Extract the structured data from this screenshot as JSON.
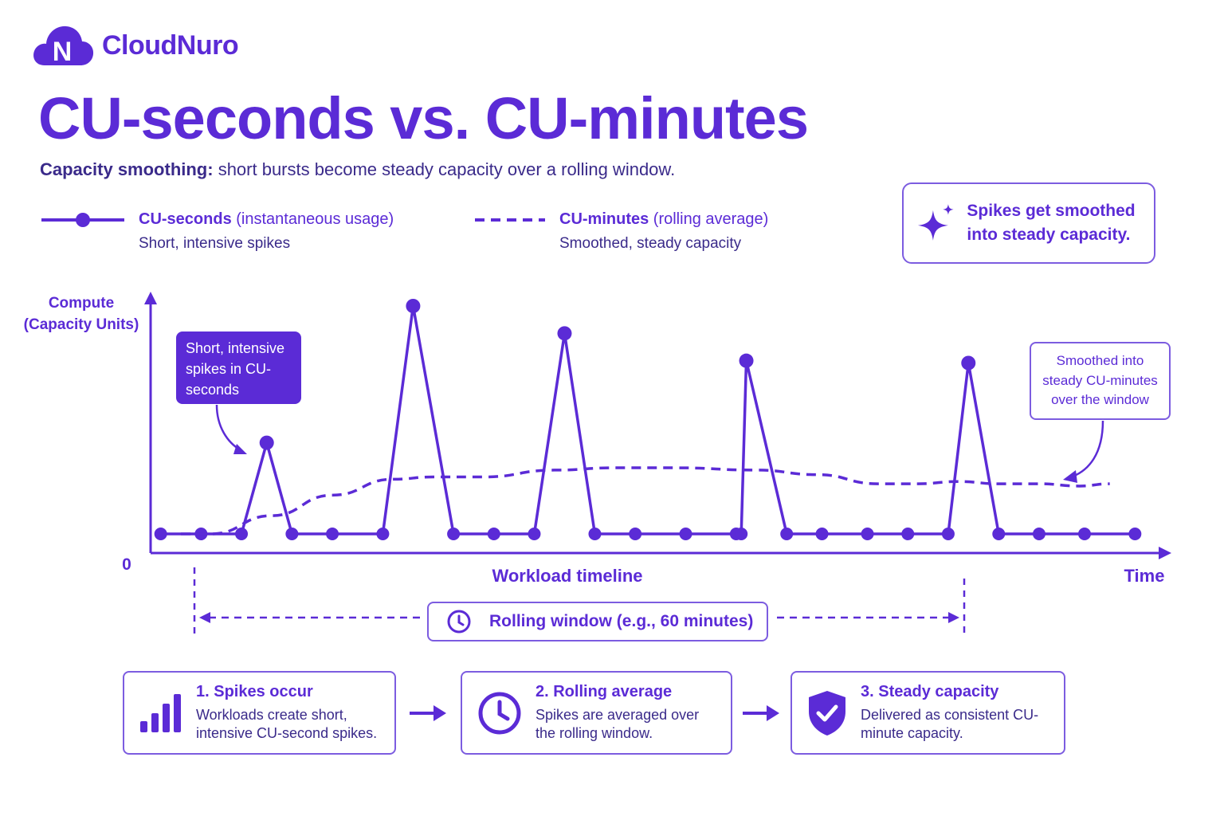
{
  "brand": {
    "name": "CloudNuro",
    "logo_letter": "N"
  },
  "header": {
    "title": "CU-seconds vs. CU-minutes",
    "subtitle_bold": "Capacity smoothing:",
    "subtitle_rest": " short bursts become steady capacity over a rolling window."
  },
  "legend": [
    {
      "name": "CU-seconds",
      "qualifier": " (instantaneous usage)",
      "desc": "Short, intensive spikes"
    },
    {
      "name": "CU-minutes",
      "qualifier": " (rolling average)",
      "desc": "Smoothed, steady capacity"
    }
  ],
  "callout": {
    "text": "Spikes get smoothed into steady capacity."
  },
  "annotations": {
    "spikes": "Short, intensive spikes in CU-seconds",
    "smoothed": "Smoothed into steady CU-minutes over the window"
  },
  "window": {
    "label": "Rolling window (e.g., 60 minutes)"
  },
  "steps": [
    {
      "title": "1. Spikes occur",
      "desc": "Workloads create short, intensive CU-second spikes.",
      "icon": "bar-chart-icon"
    },
    {
      "title": "2. Rolling average",
      "desc": "Spikes are averaged over the rolling window.",
      "icon": "clock-icon"
    },
    {
      "title": "3. Steady capacity",
      "desc": "Delivered as consistent CU-minute capacity.",
      "icon": "shield-check-icon"
    }
  ],
  "colors": {
    "primary": "#5b2bd6",
    "border": "#7c5ce0",
    "text_dark": "#3a2a8a"
  },
  "chart_data": {
    "type": "line",
    "ylabel": "Compute (Capacity Units)",
    "xlabel": "Workload timeline",
    "x_end_label": "Time",
    "y_origin_label": "0",
    "ylim": [
      0,
      100
    ],
    "xlim": [
      0,
      100
    ],
    "grid": false,
    "legend_position": "top",
    "series": [
      {
        "name": "CU-seconds",
        "style": "solid-markers",
        "points": [
          [
            1,
            0
          ],
          [
            5,
            0
          ],
          [
            9,
            0
          ],
          [
            11.5,
            40
          ],
          [
            14,
            0
          ],
          [
            18,
            0
          ],
          [
            23,
            0
          ],
          [
            26,
            100
          ],
          [
            30,
            0
          ],
          [
            34,
            0
          ],
          [
            38,
            0
          ],
          [
            41,
            88
          ],
          [
            44,
            0
          ],
          [
            48,
            0
          ],
          [
            53,
            0
          ],
          [
            58,
            0
          ],
          [
            58.5,
            0
          ],
          [
            59,
            76
          ],
          [
            63,
            0
          ],
          [
            66.5,
            0
          ],
          [
            71,
            0
          ],
          [
            75,
            0
          ],
          [
            79,
            0
          ],
          [
            81,
            75
          ],
          [
            84,
            0
          ],
          [
            88,
            0
          ],
          [
            92.5,
            0
          ],
          [
            97.5,
            0
          ]
        ]
      },
      {
        "name": "CU-minutes",
        "style": "dashed",
        "points": [
          [
            3,
            0
          ],
          [
            6,
            0
          ],
          [
            12,
            8
          ],
          [
            18,
            17
          ],
          [
            24,
            24
          ],
          [
            28,
            25
          ],
          [
            33,
            25
          ],
          [
            40,
            28
          ],
          [
            46,
            29
          ],
          [
            52,
            29
          ],
          [
            60,
            28
          ],
          [
            66,
            26
          ],
          [
            72,
            22
          ],
          [
            76,
            22
          ],
          [
            80,
            23
          ],
          [
            84,
            22
          ],
          [
            88,
            22
          ],
          [
            92,
            21
          ],
          [
            95,
            22
          ]
        ]
      }
    ]
  }
}
